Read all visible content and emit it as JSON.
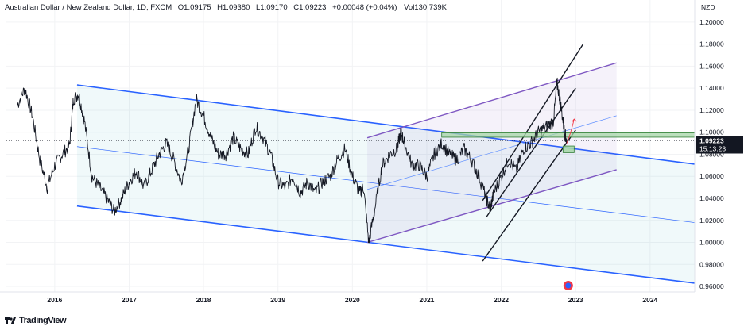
{
  "header": {
    "symbol": "Australian Dollar / New Zealand Dollar, 1D, FXCM",
    "open": "O1.09175",
    "high": "H1.09380",
    "low": "L1.09170",
    "close": "C1.09223",
    "change": "+0.00048 (+0.04%)",
    "volume": "Vol130.739K"
  },
  "footer": {
    "brand": "TradingView",
    "logo_icon": "tradingview-logo-icon"
  },
  "colors": {
    "channel_blue": "#2962ff",
    "rising_purple": "#7e57c2",
    "trend_black": "#131722",
    "zone_green": "#a5d6a7",
    "price_tag": "#131722",
    "forecast_red": "#f23645"
  },
  "chart_data": {
    "type": "line",
    "title": "",
    "currency_label": "NZD",
    "price_axis": {
      "ticks": [
        "1.20000",
        "1.18000",
        "1.16000",
        "1.14000",
        "1.12000",
        "1.10000",
        "1.08000",
        "1.06000",
        "1.04000",
        "1.02000",
        "1.00000",
        "0.98000",
        "0.96000"
      ],
      "range": [
        0.955,
        1.21
      ]
    },
    "time_axis": {
      "ticks": [
        "2016",
        "2017",
        "2018",
        "2019",
        "2020",
        "2021",
        "2022",
        "2023",
        "2024"
      ],
      "range": [
        2015.35,
        2024.6
      ]
    },
    "last_price": "1.09223",
    "countdown": "15:13:23",
    "series": [
      {
        "values": [
          [
            2015.5,
            1.125
          ],
          [
            2015.6,
            1.14
          ],
          [
            2015.7,
            1.115
          ],
          [
            2015.8,
            1.075
          ],
          [
            2015.9,
            1.05
          ],
          [
            2016.0,
            1.07
          ],
          [
            2016.1,
            1.08
          ],
          [
            2016.2,
            1.088
          ],
          [
            2016.25,
            1.13
          ],
          [
            2016.32,
            1.135
          ],
          [
            2016.4,
            1.11
          ],
          [
            2016.5,
            1.06
          ],
          [
            2016.6,
            1.05
          ],
          [
            2016.7,
            1.04
          ],
          [
            2016.8,
            1.028
          ],
          [
            2016.9,
            1.04
          ],
          [
            2017.0,
            1.055
          ],
          [
            2017.1,
            1.065
          ],
          [
            2017.2,
            1.05
          ],
          [
            2017.3,
            1.065
          ],
          [
            2017.4,
            1.08
          ],
          [
            2017.5,
            1.09
          ],
          [
            2017.6,
            1.075
          ],
          [
            2017.7,
            1.055
          ],
          [
            2017.8,
            1.085
          ],
          [
            2017.9,
            1.13
          ],
          [
            2018.0,
            1.115
          ],
          [
            2018.1,
            1.095
          ],
          [
            2018.2,
            1.08
          ],
          [
            2018.3,
            1.08
          ],
          [
            2018.4,
            1.095
          ],
          [
            2018.5,
            1.085
          ],
          [
            2018.6,
            1.08
          ],
          [
            2018.7,
            1.105
          ],
          [
            2018.8,
            1.095
          ],
          [
            2018.9,
            1.08
          ],
          [
            2019.0,
            1.055
          ],
          [
            2019.1,
            1.05
          ],
          [
            2019.2,
            1.06
          ],
          [
            2019.3,
            1.045
          ],
          [
            2019.4,
            1.055
          ],
          [
            2019.5,
            1.045
          ],
          [
            2019.6,
            1.055
          ],
          [
            2019.7,
            1.06
          ],
          [
            2019.8,
            1.075
          ],
          [
            2019.9,
            1.085
          ],
          [
            2020.0,
            1.06
          ],
          [
            2020.1,
            1.045
          ],
          [
            2020.15,
            1.05
          ],
          [
            2020.22,
            1.0
          ],
          [
            2020.3,
            1.03
          ],
          [
            2020.4,
            1.07
          ],
          [
            2020.5,
            1.08
          ],
          [
            2020.6,
            1.085
          ],
          [
            2020.65,
            1.1
          ],
          [
            2020.7,
            1.09
          ],
          [
            2020.8,
            1.07
          ],
          [
            2020.9,
            1.07
          ],
          [
            2021.0,
            1.06
          ],
          [
            2021.1,
            1.08
          ],
          [
            2021.2,
            1.09
          ],
          [
            2021.3,
            1.08
          ],
          [
            2021.4,
            1.075
          ],
          [
            2021.5,
            1.085
          ],
          [
            2021.6,
            1.075
          ],
          [
            2021.7,
            1.06
          ],
          [
            2021.8,
            1.04
          ],
          [
            2021.85,
            1.03
          ],
          [
            2021.9,
            1.045
          ],
          [
            2022.0,
            1.06
          ],
          [
            2022.1,
            1.075
          ],
          [
            2022.2,
            1.065
          ],
          [
            2022.3,
            1.085
          ],
          [
            2022.4,
            1.09
          ],
          [
            2022.5,
            1.1
          ],
          [
            2022.6,
            1.105
          ],
          [
            2022.7,
            1.11
          ],
          [
            2022.75,
            1.145
          ],
          [
            2022.8,
            1.125
          ],
          [
            2022.85,
            1.1
          ],
          [
            2022.88,
            1.092
          ]
        ]
      }
    ],
    "annotations": {
      "falling_channel": "blue parallel channel with median line",
      "rising_channel": "purple parallel channel from 2020 low",
      "ascending_lines": "three black parallel trend lines 2021-2023",
      "zone_1": "horizontal green box near 1.095-1.099",
      "zone_2": "small green box near 1.082-1.087",
      "forecast_arrow": "red curved arrow pointing up"
    }
  }
}
